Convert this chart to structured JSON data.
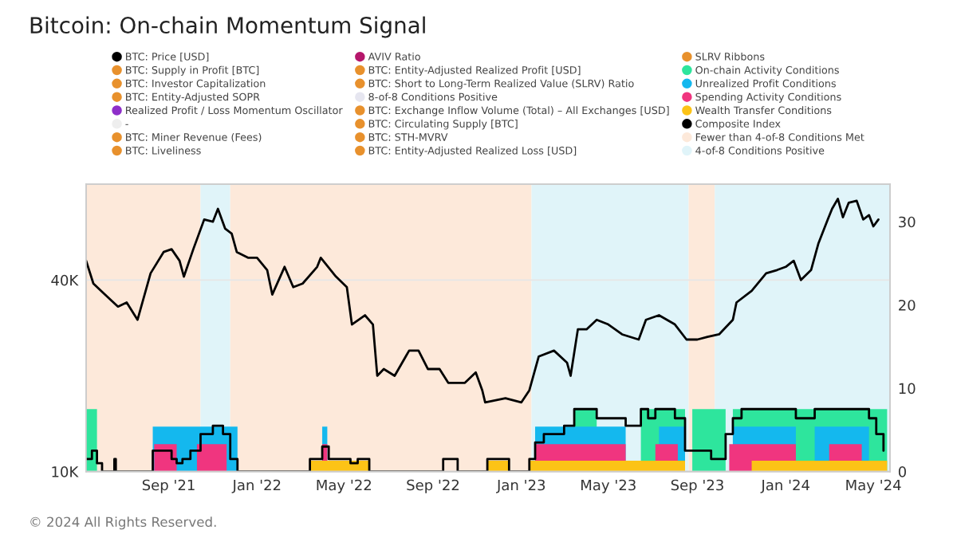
{
  "chart_data": {
    "type": "line",
    "title": "Bitcoin: On-chain Momentum Signal",
    "xlim": [
      "2021-05-10",
      "2024-05-24"
    ],
    "xticks": [
      {
        "value": "2021-09-01",
        "label": "Sep '21"
      },
      {
        "value": "2022-01-01",
        "label": "Jan '22"
      },
      {
        "value": "2022-05-01",
        "label": "May '22"
      },
      {
        "value": "2022-09-01",
        "label": "Sep '22"
      },
      {
        "value": "2023-01-01",
        "label": "Jan '23"
      },
      {
        "value": "2023-05-01",
        "label": "May '23"
      },
      {
        "value": "2023-09-01",
        "label": "Sep '23"
      },
      {
        "value": "2024-01-01",
        "label": "Jan '24"
      },
      {
        "value": "2024-05-01",
        "label": "May '24"
      }
    ],
    "log": "y",
    "ylim": [
      10000,
      80000
    ],
    "yticks": [
      {
        "value": 10000,
        "label": "10K"
      },
      {
        "value": 40000,
        "label": "40K"
      }
    ],
    "y2lim": [
      0,
      34.5
    ],
    "y2ticks": [
      0,
      10,
      20,
      30
    ],
    "grid": "y",
    "legend": "top",
    "bands": [
      {
        "axis": "x",
        "from": "2021-05-10",
        "to": "2021-10-15",
        "label": "Fewer than 4-of-8 Conditions Met",
        "color": "#fde9da"
      },
      {
        "axis": "x",
        "from": "2021-10-15",
        "to": "2021-11-25",
        "label": "4-of-8 Conditions Positive",
        "color": "#e0f4f9"
      },
      {
        "axis": "x",
        "from": "2021-11-25",
        "to": "2023-01-15",
        "color": "#fde9da"
      },
      {
        "axis": "x",
        "from": "2023-01-15",
        "to": "2023-08-20",
        "color": "#e0f4f9"
      },
      {
        "axis": "x",
        "from": "2023-08-20",
        "to": "2023-09-25",
        "color": "#fde9da"
      },
      {
        "axis": "x",
        "from": "2023-09-25",
        "to": "2024-05-24",
        "color": "#e0f4f9"
      }
    ],
    "annotations": [
      "© 2024 All Rights Reserved."
    ],
    "series": [
      {
        "name": "BTC: Price [USD]",
        "color": "#000000",
        "x": [
          "2021-05-10",
          "2021-05-20",
          "2021-06-05",
          "2021-06-23",
          "2021-07-05",
          "2021-07-20",
          "2021-08-07",
          "2021-08-25",
          "2021-09-05",
          "2021-09-16",
          "2021-09-22",
          "2021-10-05",
          "2021-10-20",
          "2021-11-01",
          "2021-11-08",
          "2021-11-18",
          "2021-11-27",
          "2021-12-04",
          "2021-12-20",
          "2022-01-01",
          "2022-01-15",
          "2022-01-22",
          "2022-02-08",
          "2022-02-20",
          "2022-03-05",
          "2022-03-25",
          "2022-03-30",
          "2022-04-20",
          "2022-05-05",
          "2022-05-12",
          "2022-05-30",
          "2022-06-10",
          "2022-06-16",
          "2022-06-25",
          "2022-07-10",
          "2022-07-30",
          "2022-08-12",
          "2022-08-25",
          "2022-09-10",
          "2022-09-22",
          "2022-10-15",
          "2022-10-30",
          "2022-11-08",
          "2022-11-12",
          "2022-12-10",
          "2023-01-01",
          "2023-01-12",
          "2023-01-25",
          "2023-02-15",
          "2023-03-05",
          "2023-03-10",
          "2023-03-20",
          "2023-04-01",
          "2023-04-15",
          "2023-05-01",
          "2023-05-20",
          "2023-06-12",
          "2023-06-22",
          "2023-07-10",
          "2023-08-01",
          "2023-08-17",
          "2023-09-01",
          "2023-09-15",
          "2023-10-01",
          "2023-10-20",
          "2023-10-25",
          "2023-11-15",
          "2023-12-05",
          "2023-12-20",
          "2024-01-01",
          "2024-01-12",
          "2024-01-22",
          "2024-02-05",
          "2024-02-15",
          "2024-02-28",
          "2024-03-05",
          "2024-03-13",
          "2024-03-20",
          "2024-03-28",
          "2024-04-08",
          "2024-04-17",
          "2024-04-25",
          "2024-05-01",
          "2024-05-08"
        ],
        "values": [
          46000,
          39000,
          36000,
          33000,
          34000,
          30000,
          42000,
          49000,
          50000,
          46000,
          41000,
          50000,
          62000,
          61000,
          67000,
          58000,
          56000,
          49000,
          47000,
          47000,
          43000,
          36000,
          44000,
          38000,
          39000,
          44000,
          47000,
          41000,
          38000,
          29000,
          31000,
          29000,
          20000,
          21000,
          20000,
          24000,
          24000,
          21000,
          21000,
          19000,
          19000,
          20500,
          18000,
          16500,
          17000,
          16500,
          18000,
          23000,
          24000,
          22000,
          20000,
          28000,
          28000,
          30000,
          29000,
          27000,
          26000,
          30000,
          31000,
          29000,
          26000,
          26000,
          26500,
          27000,
          30000,
          34000,
          37000,
          42000,
          43000,
          44000,
          46000,
          40000,
          43000,
          52000,
          62000,
          67000,
          72000,
          63000,
          70000,
          71000,
          62000,
          64000,
          59000,
          62000
        ]
      },
      {
        "name": "BTC: Supply in Profit [BTC]",
        "color": "#e8912d"
      },
      {
        "name": "BTC: Investor Capitalization",
        "color": "#e8912d"
      },
      {
        "name": "BTC: Entity-Adjusted SOPR",
        "color": "#e8912d"
      },
      {
        "name": "Realized Profit / Loss Momentum Oscillator",
        "color": "#8e2fc9"
      },
      {
        "name": "-",
        "color": "#eeeeee"
      },
      {
        "name": "BTC: Miner Revenue (Fees)",
        "color": "#e8912d"
      },
      {
        "name": "BTC: Liveliness",
        "color": "#e8912d"
      },
      {
        "name": "AVIV Ratio",
        "color": "#b5176b"
      },
      {
        "name": "BTC: Entity-Adjusted Realized Profit [USD]",
        "color": "#e8912d"
      },
      {
        "name": "BTC: Short to Long-Term Realized Value (SLRV) Ratio",
        "color": "#e8912d"
      },
      {
        "name": "8-of-8 Conditions Positive",
        "color": "#e6e6f0"
      },
      {
        "name": "BTC: Exchange Inflow Volume (Total) – All Exchanges [USD]",
        "color": "#e8912d"
      },
      {
        "name": "BTC: Circulating Supply [BTC]",
        "color": "#e8912d"
      },
      {
        "name": "BTC: STH-MVRV",
        "color": "#e8912d"
      },
      {
        "name": "BTC: Entity-Adjusted Realized Loss [USD]",
        "color": "#e8912d"
      },
      {
        "name": "SLRV Ribbons",
        "color": "#e8912d"
      },
      {
        "name": "On-chain Activity Conditions",
        "color": "#2ee59d",
        "type": "area",
        "axis": "y2",
        "x": [
          "2021-05-10",
          "2021-05-25",
          "2023-03-15",
          "2023-04-15",
          "2023-06-15",
          "2023-08-15",
          "2023-08-25",
          "2023-10-10",
          "2023-10-20",
          "2024-05-20"
        ],
        "values": [
          7.5,
          0,
          7.5,
          0,
          7.5,
          0,
          7.5,
          0,
          7.5,
          0
        ]
      },
      {
        "name": "Unrealized Profit Conditions",
        "color": "#14b8ee",
        "type": "area",
        "axis": "y2",
        "x": [
          "2021-08-10",
          "2021-12-05",
          "2022-04-01",
          "2022-04-08",
          "2023-01-20",
          "2023-05-25",
          "2023-07-10",
          "2023-08-15",
          "2023-10-20",
          "2024-01-15",
          "2024-02-10",
          "2024-04-25"
        ],
        "values": [
          5.4,
          0,
          5.4,
          0,
          5.4,
          0,
          5.4,
          0,
          5.4,
          0,
          5.4,
          0
        ]
      },
      {
        "name": "Spending Activity Conditions",
        "color": "#f0357f",
        "type": "area",
        "axis": "y2",
        "x": [
          "2021-08-12",
          "2021-09-12",
          "2021-10-10",
          "2021-11-20",
          "2022-04-01",
          "2022-04-08",
          "2023-01-20",
          "2023-05-25",
          "2023-07-05",
          "2023-08-05",
          "2023-10-15",
          "2024-01-15",
          "2024-03-01",
          "2024-04-15"
        ],
        "values": [
          3.3,
          0,
          3.3,
          0,
          3.3,
          0,
          3.3,
          0,
          3.3,
          0,
          3.3,
          0,
          3.3,
          0
        ]
      },
      {
        "name": "Wealth Transfer Conditions",
        "color": "#fcc316",
        "type": "area",
        "axis": "y2",
        "x": [
          "2022-03-15",
          "2022-06-05",
          "2022-11-15",
          "2022-12-15",
          "2023-01-12",
          "2023-08-15",
          "2023-11-15",
          "2024-05-20"
        ],
        "values": [
          1.3,
          0,
          1.3,
          0,
          1.3,
          0,
          1.3,
          0
        ]
      },
      {
        "name": "Composite Index",
        "color": "#000000",
        "type": "step",
        "axis": "y2",
        "x": [
          "2021-05-10",
          "2021-05-18",
          "2021-05-25",
          "2021-06-01",
          "2021-06-18",
          "2021-06-20",
          "2021-08-10",
          "2021-09-05",
          "2021-09-12",
          "2021-09-20",
          "2021-10-01",
          "2021-10-15",
          "2021-11-01",
          "2021-11-15",
          "2021-11-25",
          "2021-12-05",
          "2022-03-15",
          "2022-04-01",
          "2022-04-10",
          "2022-05-10",
          "2022-05-20",
          "2022-06-05",
          "2022-09-15",
          "2022-10-05",
          "2022-11-15",
          "2022-12-15",
          "2023-01-12",
          "2023-01-20",
          "2023-02-01",
          "2023-03-01",
          "2023-03-15",
          "2023-04-15",
          "2023-05-25",
          "2023-06-15",
          "2023-06-25",
          "2023-07-05",
          "2023-08-01",
          "2023-08-15",
          "2023-09-20",
          "2023-10-10",
          "2023-10-20",
          "2023-11-01",
          "2024-01-15",
          "2024-02-10",
          "2024-04-25",
          "2024-05-05",
          "2024-05-15"
        ],
        "values": [
          1.5,
          2.5,
          1,
          0,
          1.5,
          0,
          2.5,
          1.5,
          1,
          1.5,
          2.5,
          4.5,
          5.5,
          4.5,
          1.5,
          0,
          1.5,
          3,
          1.5,
          1,
          1.5,
          0,
          1.5,
          0,
          1.5,
          0,
          1.5,
          3.5,
          4.5,
          5.5,
          7.5,
          6.4,
          5.5,
          7.5,
          6.4,
          7.5,
          6.4,
          2.5,
          1.5,
          4.5,
          6.4,
          7.5,
          6.4,
          7.5,
          6.4,
          4.5,
          2.5
        ]
      }
    ]
  }
}
